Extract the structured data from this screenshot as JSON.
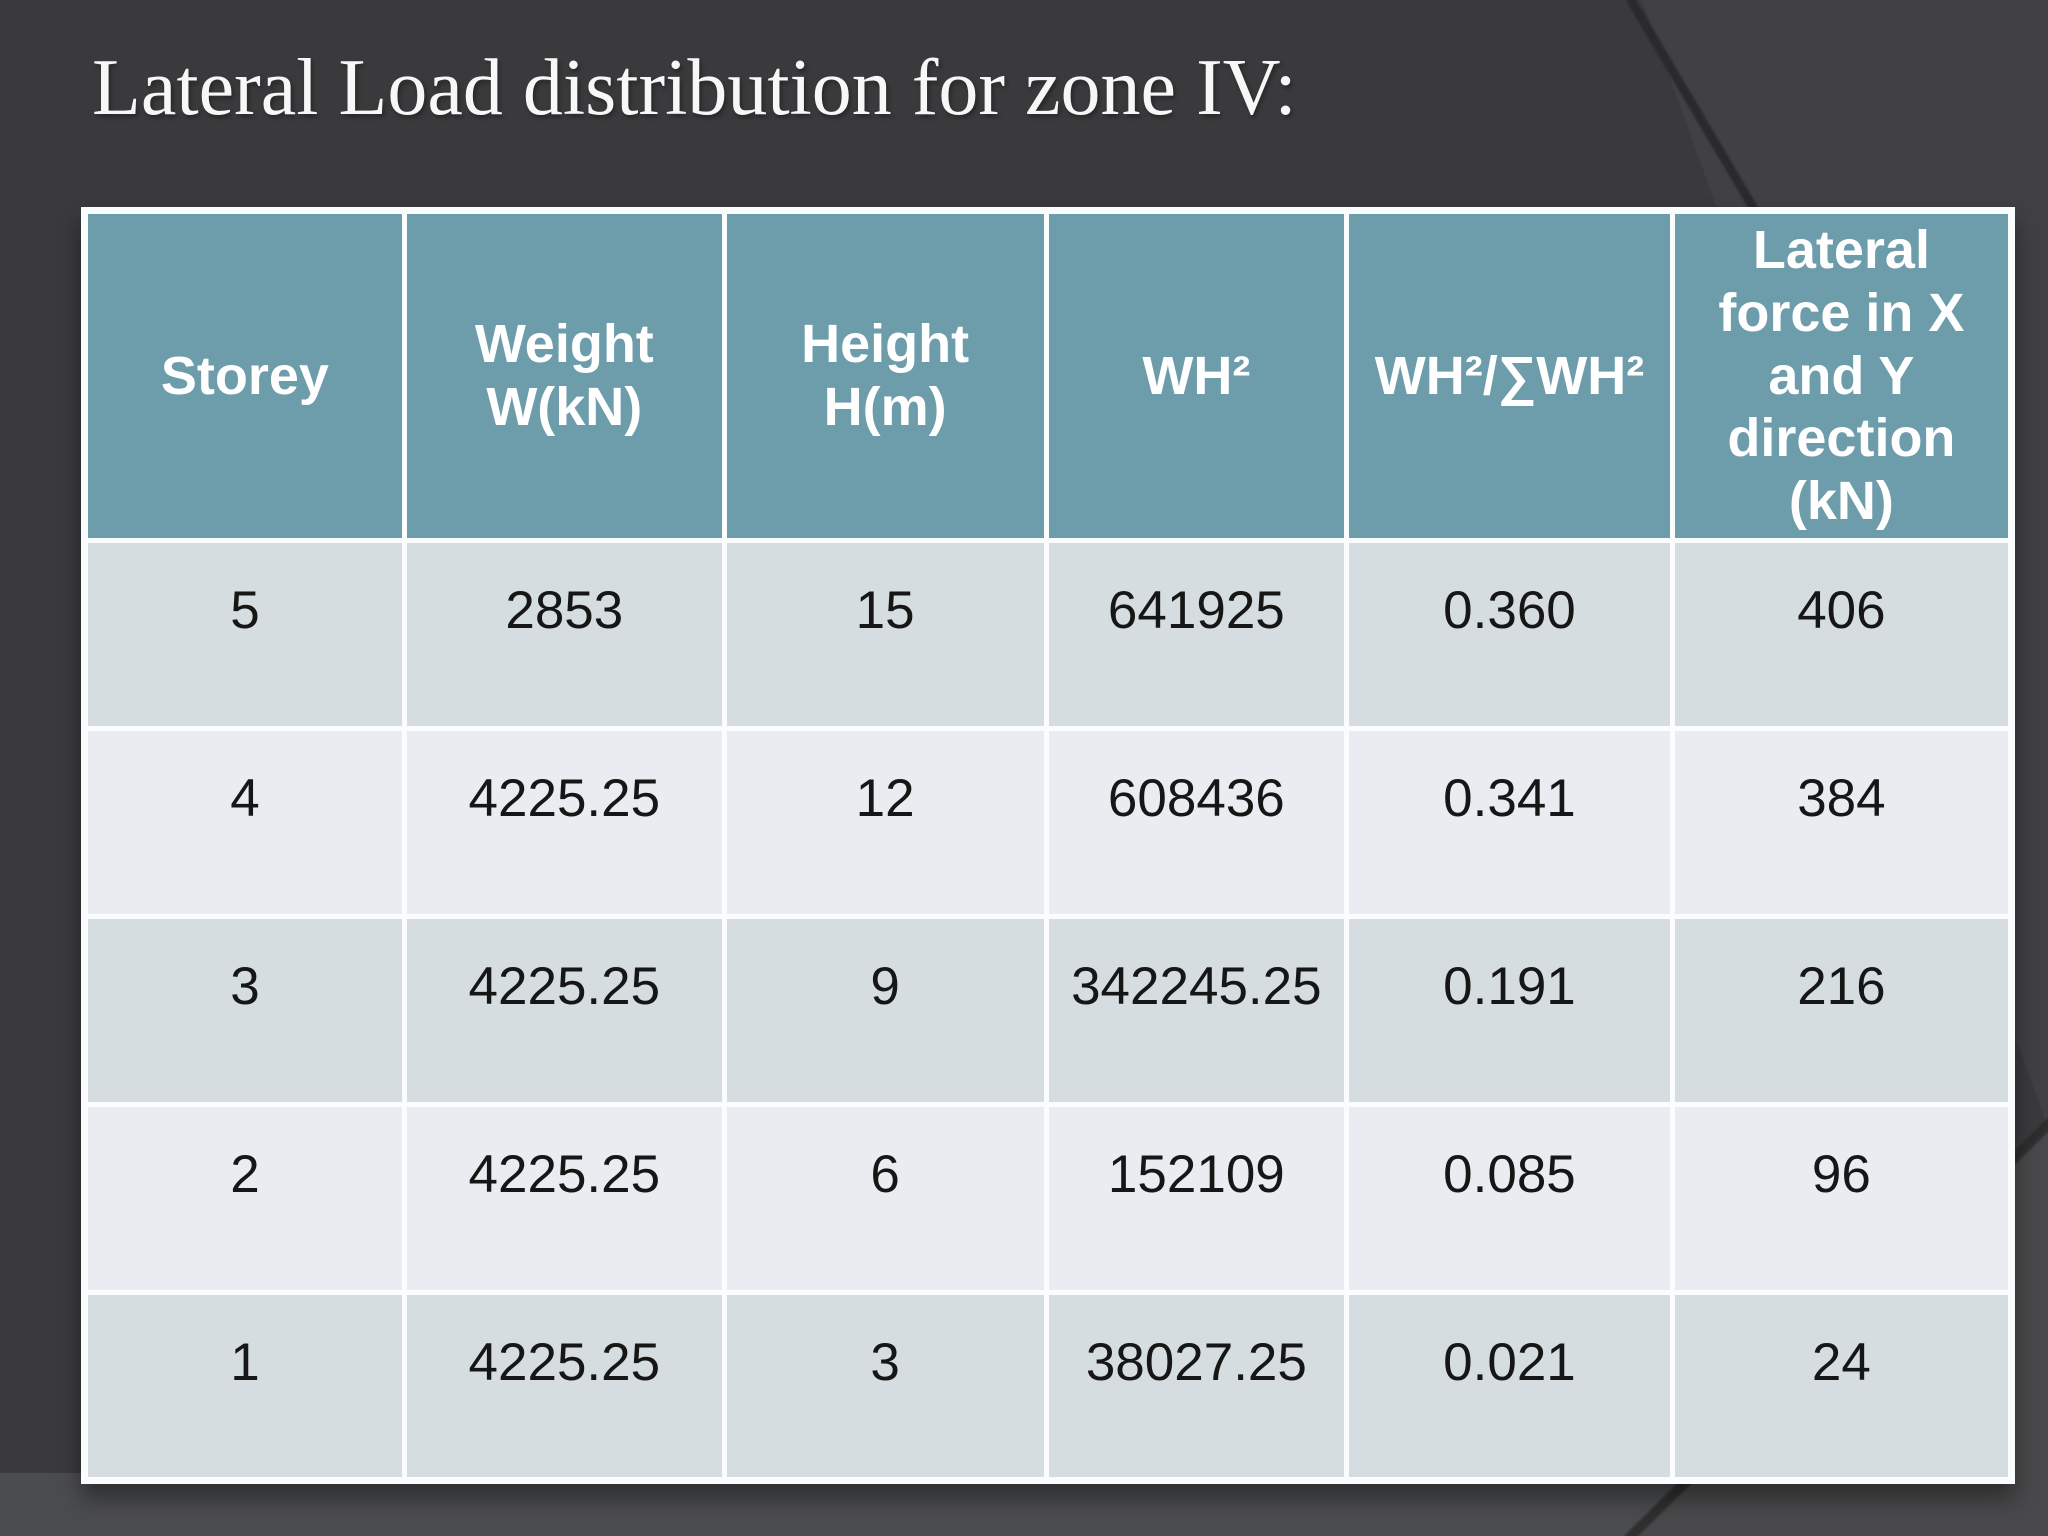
{
  "slide": {
    "title": "Lateral Load distribution for zone IV:",
    "colors": {
      "background": "#3a3a3c",
      "background_accent_right": "#414143",
      "background_bottom_band": "#4b4c4e",
      "table_header_bg": "#6d9cab",
      "table_row_odd_bg": "#d5dde1",
      "table_row_even_bg": "#e9ecf1",
      "table_border": "#fafcfd",
      "title_text": "#f7f7f7",
      "cell_text": "#161616"
    }
  },
  "table": {
    "columns": [
      "Storey",
      "Weight W(kN)",
      "Height H(m)",
      "WH²",
      "WH²/∑WH²",
      "Lateral force in X and Y direction (kN)"
    ],
    "rows": [
      [
        "5",
        "2853",
        "15",
        "641925",
        "0.360",
        "406"
      ],
      [
        "4",
        "4225.25",
        "12",
        "608436",
        "0.341",
        "384"
      ],
      [
        "3",
        "4225.25",
        "9",
        "342245.25",
        "0.191",
        "216"
      ],
      [
        "2",
        "4225.25",
        "6",
        "152109",
        "0.085",
        "96"
      ],
      [
        "1",
        "4225.25",
        "3",
        "38027.25",
        "0.021",
        "24"
      ]
    ]
  }
}
